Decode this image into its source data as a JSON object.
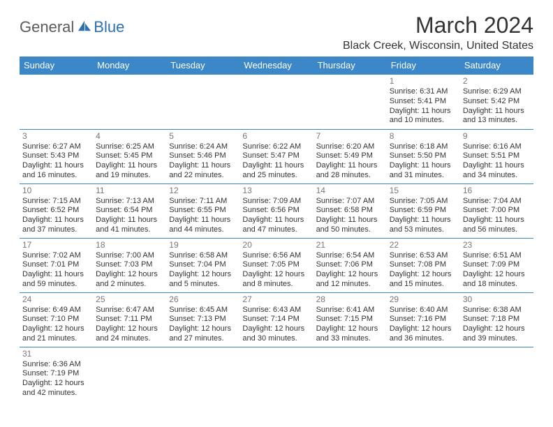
{
  "logo": {
    "part1": "General",
    "part2": "Blue"
  },
  "title": "March 2024",
  "location": "Black Creek, Wisconsin, United States",
  "colors": {
    "header_bg": "#3b87c8",
    "header_text": "#ffffff",
    "border": "#3b87c8",
    "daynum": "#777777",
    "body_text": "#333333",
    "logo_gray": "#5a5a5a",
    "logo_blue": "#2f6fb3"
  },
  "weekdays": [
    "Sunday",
    "Monday",
    "Tuesday",
    "Wednesday",
    "Thursday",
    "Friday",
    "Saturday"
  ],
  "first_weekday_index": 5,
  "days": [
    {
      "n": 1,
      "sunrise": "6:31 AM",
      "sunset": "5:41 PM",
      "daylight": "11 hours and 10 minutes."
    },
    {
      "n": 2,
      "sunrise": "6:29 AM",
      "sunset": "5:42 PM",
      "daylight": "11 hours and 13 minutes."
    },
    {
      "n": 3,
      "sunrise": "6:27 AM",
      "sunset": "5:43 PM",
      "daylight": "11 hours and 16 minutes."
    },
    {
      "n": 4,
      "sunrise": "6:25 AM",
      "sunset": "5:45 PM",
      "daylight": "11 hours and 19 minutes."
    },
    {
      "n": 5,
      "sunrise": "6:24 AM",
      "sunset": "5:46 PM",
      "daylight": "11 hours and 22 minutes."
    },
    {
      "n": 6,
      "sunrise": "6:22 AM",
      "sunset": "5:47 PM",
      "daylight": "11 hours and 25 minutes."
    },
    {
      "n": 7,
      "sunrise": "6:20 AM",
      "sunset": "5:49 PM",
      "daylight": "11 hours and 28 minutes."
    },
    {
      "n": 8,
      "sunrise": "6:18 AM",
      "sunset": "5:50 PM",
      "daylight": "11 hours and 31 minutes."
    },
    {
      "n": 9,
      "sunrise": "6:16 AM",
      "sunset": "5:51 PM",
      "daylight": "11 hours and 34 minutes."
    },
    {
      "n": 10,
      "sunrise": "7:15 AM",
      "sunset": "6:52 PM",
      "daylight": "11 hours and 37 minutes."
    },
    {
      "n": 11,
      "sunrise": "7:13 AM",
      "sunset": "6:54 PM",
      "daylight": "11 hours and 41 minutes."
    },
    {
      "n": 12,
      "sunrise": "7:11 AM",
      "sunset": "6:55 PM",
      "daylight": "11 hours and 44 minutes."
    },
    {
      "n": 13,
      "sunrise": "7:09 AM",
      "sunset": "6:56 PM",
      "daylight": "11 hours and 47 minutes."
    },
    {
      "n": 14,
      "sunrise": "7:07 AM",
      "sunset": "6:58 PM",
      "daylight": "11 hours and 50 minutes."
    },
    {
      "n": 15,
      "sunrise": "7:05 AM",
      "sunset": "6:59 PM",
      "daylight": "11 hours and 53 minutes."
    },
    {
      "n": 16,
      "sunrise": "7:04 AM",
      "sunset": "7:00 PM",
      "daylight": "11 hours and 56 minutes."
    },
    {
      "n": 17,
      "sunrise": "7:02 AM",
      "sunset": "7:01 PM",
      "daylight": "11 hours and 59 minutes."
    },
    {
      "n": 18,
      "sunrise": "7:00 AM",
      "sunset": "7:03 PM",
      "daylight": "12 hours and 2 minutes."
    },
    {
      "n": 19,
      "sunrise": "6:58 AM",
      "sunset": "7:04 PM",
      "daylight": "12 hours and 5 minutes."
    },
    {
      "n": 20,
      "sunrise": "6:56 AM",
      "sunset": "7:05 PM",
      "daylight": "12 hours and 8 minutes."
    },
    {
      "n": 21,
      "sunrise": "6:54 AM",
      "sunset": "7:06 PM",
      "daylight": "12 hours and 12 minutes."
    },
    {
      "n": 22,
      "sunrise": "6:53 AM",
      "sunset": "7:08 PM",
      "daylight": "12 hours and 15 minutes."
    },
    {
      "n": 23,
      "sunrise": "6:51 AM",
      "sunset": "7:09 PM",
      "daylight": "12 hours and 18 minutes."
    },
    {
      "n": 24,
      "sunrise": "6:49 AM",
      "sunset": "7:10 PM",
      "daylight": "12 hours and 21 minutes."
    },
    {
      "n": 25,
      "sunrise": "6:47 AM",
      "sunset": "7:11 PM",
      "daylight": "12 hours and 24 minutes."
    },
    {
      "n": 26,
      "sunrise": "6:45 AM",
      "sunset": "7:13 PM",
      "daylight": "12 hours and 27 minutes."
    },
    {
      "n": 27,
      "sunrise": "6:43 AM",
      "sunset": "7:14 PM",
      "daylight": "12 hours and 30 minutes."
    },
    {
      "n": 28,
      "sunrise": "6:41 AM",
      "sunset": "7:15 PM",
      "daylight": "12 hours and 33 minutes."
    },
    {
      "n": 29,
      "sunrise": "6:40 AM",
      "sunset": "7:16 PM",
      "daylight": "12 hours and 36 minutes."
    },
    {
      "n": 30,
      "sunrise": "6:38 AM",
      "sunset": "7:18 PM",
      "daylight": "12 hours and 39 minutes."
    },
    {
      "n": 31,
      "sunrise": "6:36 AM",
      "sunset": "7:19 PM",
      "daylight": "12 hours and 42 minutes."
    }
  ],
  "labels": {
    "sunrise": "Sunrise:",
    "sunset": "Sunset:",
    "daylight": "Daylight:"
  }
}
